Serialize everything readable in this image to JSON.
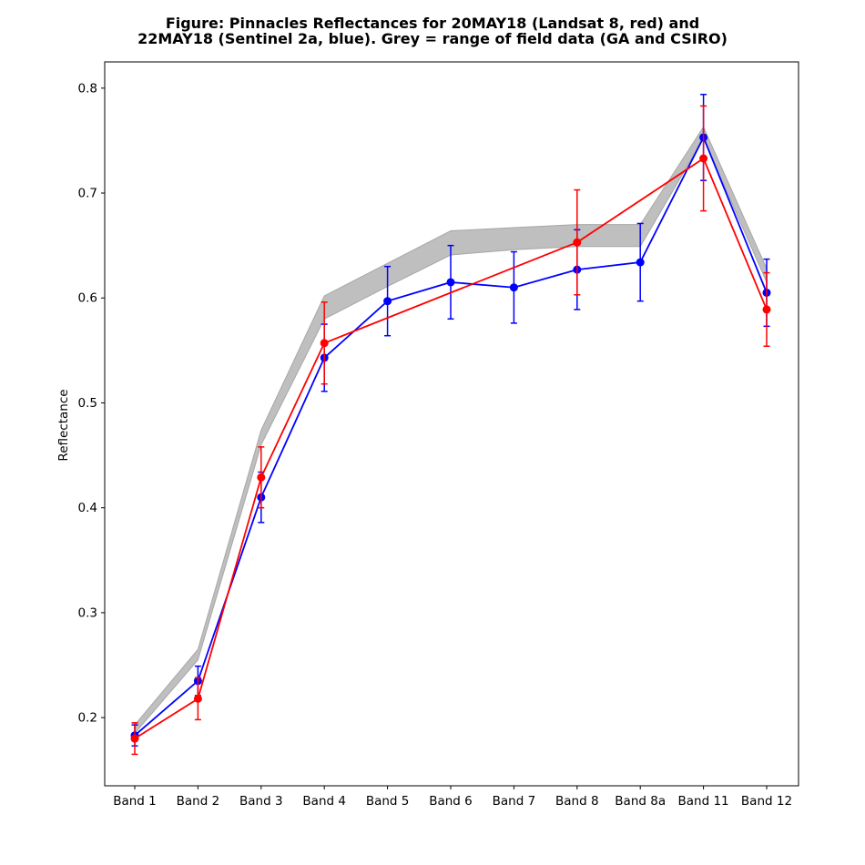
{
  "chart_data": {
    "type": "line",
    "title_line1": "Figure: Pinnacles Reflectances for 20MAY18 (Landsat 8, red) and",
    "title_line2": "22MAY18 (Sentinel 2a, blue). Grey = range of field data (GA and CSIRO)",
    "xlabel": "",
    "ylabel": "Reflectance",
    "categories": [
      "Band 1",
      "Band 2",
      "Band 3",
      "Band 4",
      "Band 5",
      "Band 6",
      "Band 7",
      "Band 8",
      "Band 8a",
      "Band 11",
      "Band 12"
    ],
    "ylim": [
      0.135,
      0.825
    ],
    "yticks": [
      0.2,
      0.3,
      0.4,
      0.5,
      0.6,
      0.7,
      0.8
    ],
    "grid": false,
    "field_range": {
      "color": "#bfbfbf",
      "edge_color": "#a6a6a6",
      "lower": [
        0.185,
        0.255,
        0.46,
        0.58,
        0.611,
        0.641,
        0.646,
        0.649,
        0.649,
        0.752,
        0.615
      ],
      "upper": [
        0.193,
        0.265,
        0.474,
        0.602,
        0.633,
        0.664,
        0.667,
        0.67,
        0.67,
        0.763,
        0.628
      ]
    },
    "series": [
      {
        "color": "#0000ff",
        "categories": [
          "Band 1",
          "Band 2",
          "Band 3",
          "Band 4",
          "Band 5",
          "Band 6",
          "Band 7",
          "Band 8",
          "Band 8a",
          "Band 11",
          "Band 12"
        ],
        "values": [
          0.183,
          0.235,
          0.41,
          0.543,
          0.597,
          0.615,
          0.61,
          0.627,
          0.634,
          0.753,
          0.605
        ],
        "errors": [
          0.01,
          0.014,
          0.024,
          0.032,
          0.033,
          0.035,
          0.034,
          0.038,
          0.037,
          0.041,
          0.032
        ]
      },
      {
        "color": "#ff0000",
        "categories": [
          "Band 1",
          "Band 2",
          "Band 3",
          "Band 4",
          "Band 5",
          "Band 6",
          "Band 7",
          "Band 8",
          "Band 8a",
          "Band 11",
          "Band 12"
        ],
        "values": [
          0.18,
          0.218,
          0.429,
          0.557,
          null,
          null,
          null,
          0.653,
          null,
          0.733,
          0.589
        ],
        "errors": [
          0.015,
          0.02,
          0.029,
          0.039,
          null,
          null,
          null,
          0.05,
          null,
          0.05,
          0.035
        ]
      }
    ]
  }
}
